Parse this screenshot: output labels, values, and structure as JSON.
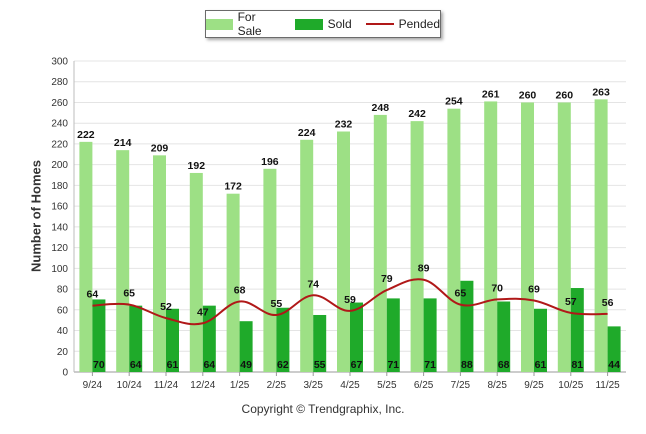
{
  "chart_data": {
    "type": "bar",
    "title": "",
    "xlabel": "",
    "ylabel": "Number of Homes",
    "ylim": [
      0,
      300
    ],
    "ytick_step": 20,
    "categories": [
      "9/24",
      "10/24",
      "11/24",
      "12/24",
      "1/25",
      "2/25",
      "3/25",
      "4/25",
      "5/25",
      "6/25",
      "7/25",
      "8/25",
      "9/25",
      "10/25",
      "11/25"
    ],
    "series": [
      {
        "name": "For Sale",
        "kind": "bar",
        "color": "#9de085",
        "values": [
          222,
          214,
          209,
          192,
          172,
          196,
          224,
          232,
          248,
          242,
          254,
          261,
          260,
          260,
          263
        ]
      },
      {
        "name": "Sold",
        "kind": "bar",
        "color": "#1faa2a",
        "values": [
          70,
          64,
          61,
          64,
          49,
          62,
          55,
          67,
          71,
          71,
          88,
          68,
          61,
          81,
          44
        ]
      },
      {
        "name": "Pended",
        "kind": "line",
        "color": "#b01818",
        "values": [
          64,
          65,
          52,
          47,
          68,
          55,
          74,
          59,
          79,
          89,
          65,
          70,
          69,
          57,
          56
        ]
      }
    ]
  },
  "legend": {
    "items": [
      {
        "label": "For Sale",
        "color": "#9de085"
      },
      {
        "label": "Sold",
        "color": "#1faa2a"
      },
      {
        "label": "Pended",
        "color": "#b01818"
      }
    ]
  },
  "footer": {
    "copyright": "Copyright © Trendgraphix, Inc."
  }
}
